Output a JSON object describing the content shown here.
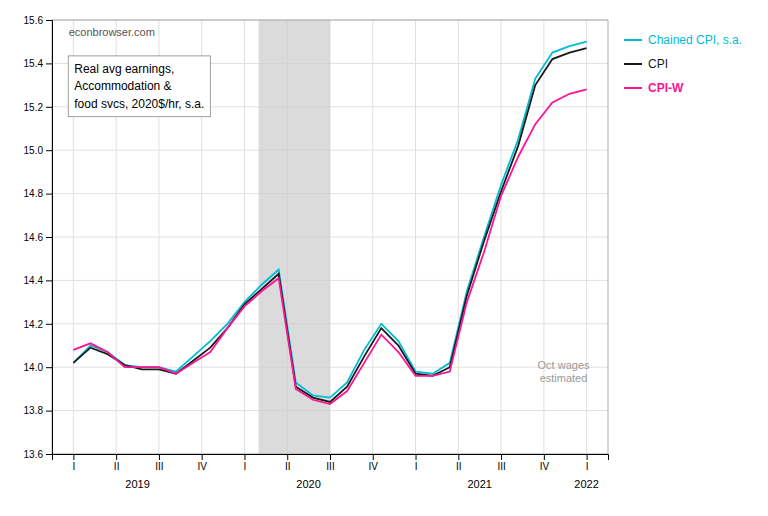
{
  "chart_data": {
    "type": "line",
    "x": [
      0,
      0.4,
      0.8,
      1.2,
      1.6,
      2,
      2.4,
      2.8,
      3.2,
      3.6,
      4,
      4.4,
      4.8,
      5.2,
      5.6,
      6,
      6.4,
      6.8,
      7.2,
      7.6,
      8,
      8.4,
      8.8,
      9.2,
      9.6,
      10,
      10.4,
      10.8,
      11.2,
      11.6,
      12
    ],
    "series": [
      {
        "name": "Chained CPI, s.a.",
        "color": "#00bcd4",
        "values": [
          14.02,
          14.1,
          14.07,
          14.01,
          14.0,
          14.0,
          13.98,
          14.05,
          14.12,
          14.2,
          14.3,
          14.38,
          14.45,
          13.93,
          13.87,
          13.86,
          13.93,
          14.08,
          14.2,
          14.12,
          13.98,
          13.97,
          14.02,
          14.35,
          14.6,
          14.84,
          15.05,
          15.33,
          15.45,
          15.48,
          15.5
        ]
      },
      {
        "name": "CPI",
        "color": "#1a1a1a",
        "values": [
          14.02,
          14.09,
          14.06,
          14.01,
          13.99,
          13.99,
          13.97,
          14.03,
          14.09,
          14.18,
          14.29,
          14.36,
          14.43,
          13.91,
          13.86,
          13.84,
          13.91,
          14.05,
          14.18,
          14.1,
          13.97,
          13.96,
          14.0,
          14.33,
          14.58,
          14.81,
          15.02,
          15.3,
          15.42,
          15.45,
          15.47
        ]
      },
      {
        "name": "CPI-W",
        "color": "#ff1493",
        "values": [
          14.08,
          14.11,
          14.07,
          14.0,
          14.0,
          14.0,
          13.97,
          14.02,
          14.07,
          14.18,
          14.28,
          14.35,
          14.41,
          13.9,
          13.85,
          13.83,
          13.89,
          14.02,
          14.15,
          14.07,
          13.96,
          13.96,
          13.98,
          14.3,
          14.53,
          14.79,
          14.97,
          15.12,
          15.22,
          15.26,
          15.28
        ]
      }
    ],
    "xlim": [
      -0.5,
      12.5
    ],
    "xticks": [
      {
        "value": 0,
        "label": "I"
      },
      {
        "value": 1,
        "label": "II"
      },
      {
        "value": 2,
        "label": "III"
      },
      {
        "value": 3,
        "label": "IV"
      },
      {
        "value": 4,
        "label": "I"
      },
      {
        "value": 5,
        "label": "II"
      },
      {
        "value": 6,
        "label": "III"
      },
      {
        "value": 7,
        "label": "IV"
      },
      {
        "value": 8,
        "label": "I"
      },
      {
        "value": 9,
        "label": "II"
      },
      {
        "value": 10,
        "label": "III"
      },
      {
        "value": 11,
        "label": "IV"
      },
      {
        "value": 12,
        "label": "I"
      }
    ],
    "year_labels": [
      {
        "value": 1.5,
        "label": "2019"
      },
      {
        "value": 5.5,
        "label": "2020"
      },
      {
        "value": 9.5,
        "label": "2021"
      },
      {
        "value": 12,
        "label": "2022"
      }
    ],
    "ylim": [
      13.6,
      15.6
    ],
    "yticks": [
      13.6,
      13.8,
      {
        "value": 14.0,
        "label": "14.0"
      },
      14.2,
      14.4,
      14.6,
      14.8,
      {
        "value": 15.0,
        "label": "15.0"
      },
      15.2,
      15.4,
      15.6
    ],
    "shaded_regions": [
      {
        "x0": 4.33,
        "x1": 6.0
      }
    ],
    "annotations": [
      "econbrowser.com",
      "Real avg earnings,\nAccommodation &\nfood svcs, 2020$/hr, s.a.",
      "Oct wages\nestimated"
    ],
    "grid": true
  }
}
